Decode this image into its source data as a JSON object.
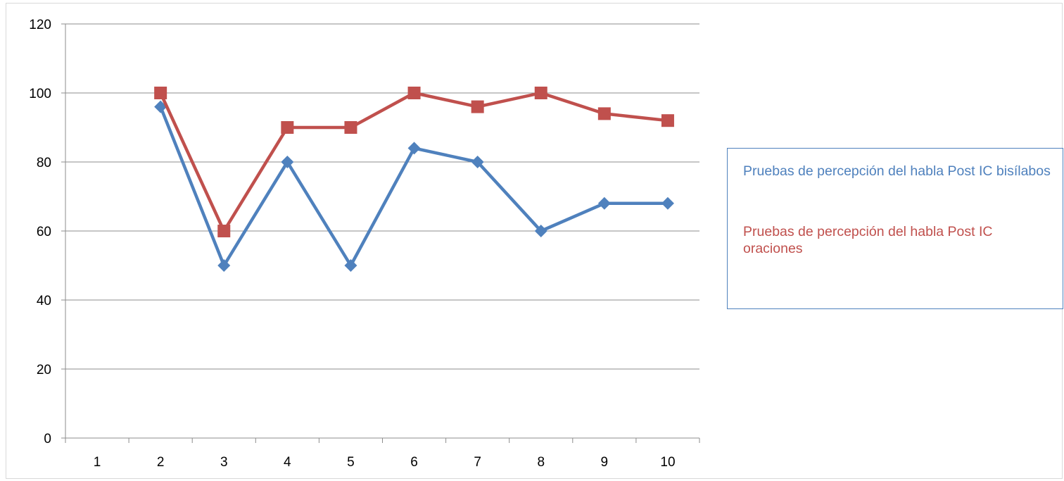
{
  "chart_data": {
    "type": "line",
    "title": "",
    "xlabel": "",
    "ylabel": "",
    "categories": [
      "1",
      "2",
      "3",
      "4",
      "5",
      "6",
      "7",
      "8",
      "9",
      "10"
    ],
    "ylim": [
      0,
      120
    ],
    "yticks": [
      0,
      20,
      40,
      60,
      80,
      100,
      120
    ],
    "grid": "horizontal",
    "legend_position": "right",
    "series": [
      {
        "name": "Pruebas de percepción del habla Post IC bisílabos",
        "color": "#4f81bd",
        "marker": "diamond",
        "values": [
          null,
          96,
          50,
          80,
          50,
          84,
          80,
          60,
          68,
          68
        ]
      },
      {
        "name": "Pruebas de percepción del habla Post IC oraciones",
        "color": "#c0504d",
        "marker": "square",
        "values": [
          null,
          100,
          60,
          90,
          90,
          100,
          96,
          100,
          94,
          92
        ]
      }
    ]
  }
}
